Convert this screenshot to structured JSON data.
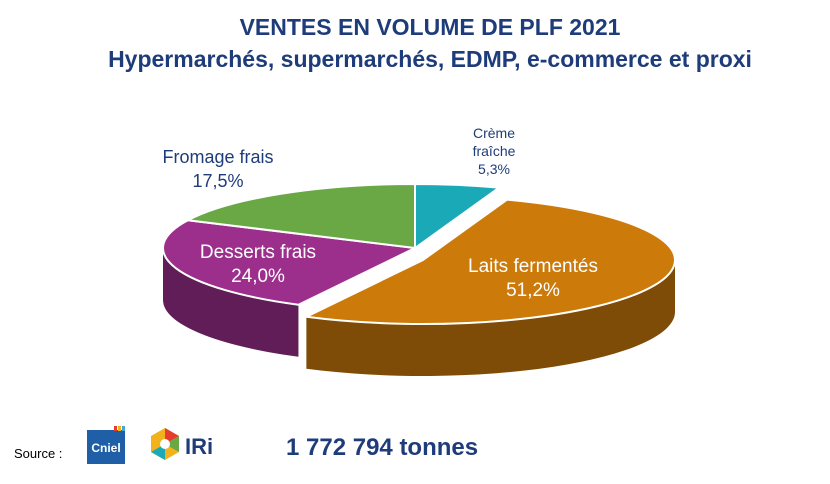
{
  "header": {
    "title": "VENTES EN VOLUME DE PLF 2021",
    "subtitle": "Hypermarchés, supermarchés, EDMP, e-commerce et proxi"
  },
  "chart_data": {
    "type": "pie",
    "title": "VENTES EN VOLUME DE PLF 2021",
    "subtitle": "Hypermarchés, supermarchés, EDMP, e-commerce et proxi",
    "slices": [
      {
        "label": "Crème fraîche",
        "label_lines": [
          "Crème",
          "fraîche"
        ],
        "value_label": "5,3%",
        "value": 5.3,
        "color": "#1aa9b6"
      },
      {
        "label": "Laits fermentés",
        "label_lines": [
          "Laits fermentés"
        ],
        "value_label": "51,2%",
        "value": 51.2,
        "color": "#cc7a0a"
      },
      {
        "label": "Desserts frais",
        "label_lines": [
          "Desserts frais"
        ],
        "value_label": "24,0%",
        "value": 24.0,
        "color": "#9c2f8c"
      },
      {
        "label": "Fromage frais",
        "label_lines": [
          "Fromage frais"
        ],
        "value_label": "17,5%",
        "value": 17.5,
        "color": "#6aa845"
      }
    ]
  },
  "footer": {
    "source_label": "Source :",
    "logos": [
      {
        "name": "Cniel",
        "text": "Cniel",
        "color": "#1f5fa8"
      },
      {
        "name": "IRi",
        "text": "IRi",
        "color": "#1f3c7a"
      }
    ],
    "total": "1 772 794 tonnes"
  }
}
